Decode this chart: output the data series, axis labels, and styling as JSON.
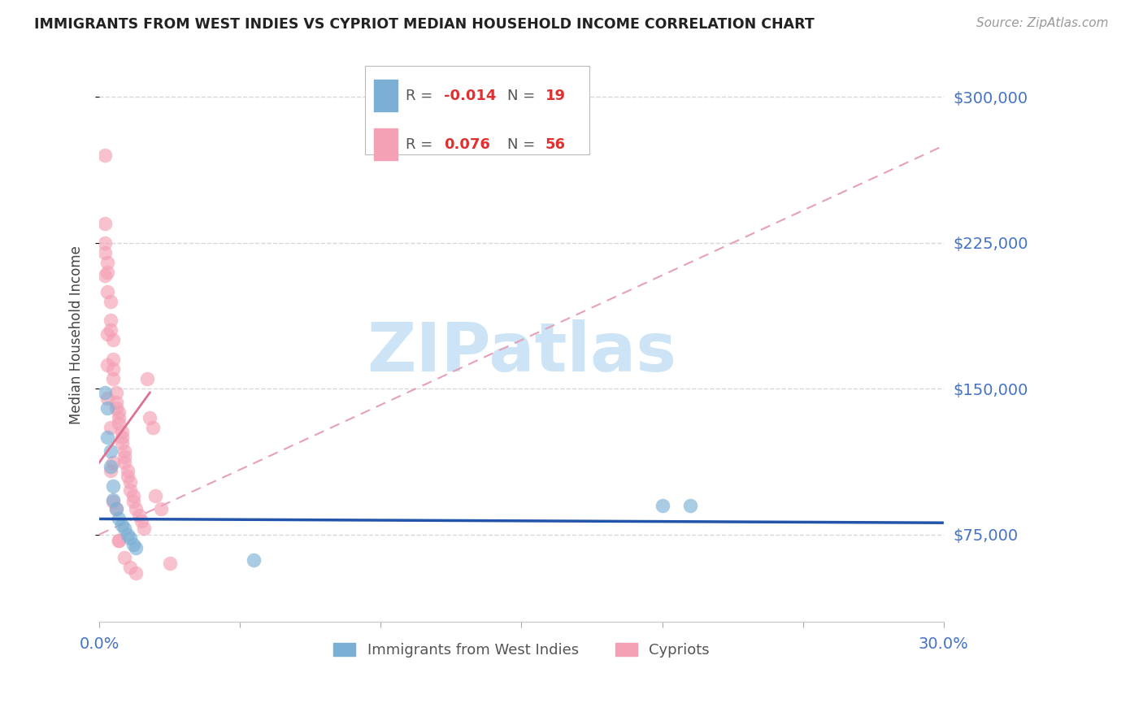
{
  "title": "IMMIGRANTS FROM WEST INDIES VS CYPRIOT MEDIAN HOUSEHOLD INCOME CORRELATION CHART",
  "source": "Source: ZipAtlas.com",
  "ylabel": "Median Household Income",
  "xmin": 0.0,
  "xmax": 0.3,
  "ymin": 30000,
  "ymax": 325000,
  "yticks": [
    75000,
    150000,
    225000,
    300000
  ],
  "ytick_labels": [
    "$75,000",
    "$150,000",
    "$225,000",
    "$300,000"
  ],
  "series1_name": "Immigrants from West Indies",
  "series1_color": "#7bafd4",
  "series2_name": "Cypriots",
  "series2_color": "#f4a0b5",
  "watermark_text": "ZIPatlas",
  "watermark_color": "#cce4f5",
  "grid_color": "#d8d8d8",
  "trend1_color": "#2255aa",
  "trend2_color": "#e07090",
  "trend2_dash_color": "#e8a0b8",
  "legend_val_color": "#e03030",
  "legend_label_color": "#555555",
  "axis_color": "#4472C4",
  "title_color": "#222222",
  "source_color": "#999999",
  "ylabel_color": "#444444",
  "s1_x": [
    0.002,
    0.003,
    0.003,
    0.004,
    0.004,
    0.005,
    0.005,
    0.006,
    0.007,
    0.008,
    0.009,
    0.01,
    0.011,
    0.012,
    0.013,
    0.055,
    0.2,
    0.21
  ],
  "s1_y": [
    148000,
    140000,
    125000,
    118000,
    110000,
    100000,
    93000,
    88000,
    83000,
    80000,
    78000,
    75000,
    73000,
    70000,
    68000,
    62000,
    90000,
    90000
  ],
  "s2_x": [
    0.002,
    0.002,
    0.002,
    0.003,
    0.003,
    0.003,
    0.004,
    0.004,
    0.004,
    0.005,
    0.005,
    0.005,
    0.005,
    0.006,
    0.006,
    0.006,
    0.007,
    0.007,
    0.007,
    0.008,
    0.008,
    0.008,
    0.009,
    0.009,
    0.009,
    0.01,
    0.01,
    0.011,
    0.011,
    0.012,
    0.012,
    0.013,
    0.014,
    0.015,
    0.016,
    0.017,
    0.018,
    0.019,
    0.02,
    0.022,
    0.025,
    0.002,
    0.003,
    0.004,
    0.005,
    0.007,
    0.009,
    0.011,
    0.013,
    0.002,
    0.003,
    0.003,
    0.004,
    0.005,
    0.006,
    0.007
  ],
  "s2_y": [
    270000,
    235000,
    225000,
    215000,
    210000,
    200000,
    195000,
    185000,
    180000,
    175000,
    165000,
    160000,
    155000,
    148000,
    143000,
    140000,
    138000,
    135000,
    132000,
    128000,
    125000,
    122000,
    118000,
    115000,
    112000,
    108000,
    105000,
    102000,
    98000,
    95000,
    92000,
    88000,
    85000,
    82000,
    78000,
    155000,
    135000,
    130000,
    95000,
    88000,
    60000,
    220000,
    145000,
    108000,
    92000,
    72000,
    63000,
    58000,
    55000,
    208000,
    178000,
    162000,
    130000,
    112000,
    88000,
    72000
  ],
  "trend1_x0": 0.0,
  "trend1_x1": 0.3,
  "trend1_y0": 83000,
  "trend1_y1": 81000,
  "trend2_solid_x0": 0.0,
  "trend2_solid_x1": 0.018,
  "trend2_solid_y0": 112000,
  "trend2_solid_y1": 148000,
  "trend2_dash_x0": 0.0,
  "trend2_dash_x1": 0.3,
  "trend2_dash_y0": 75000,
  "trend2_dash_y1": 275000
}
